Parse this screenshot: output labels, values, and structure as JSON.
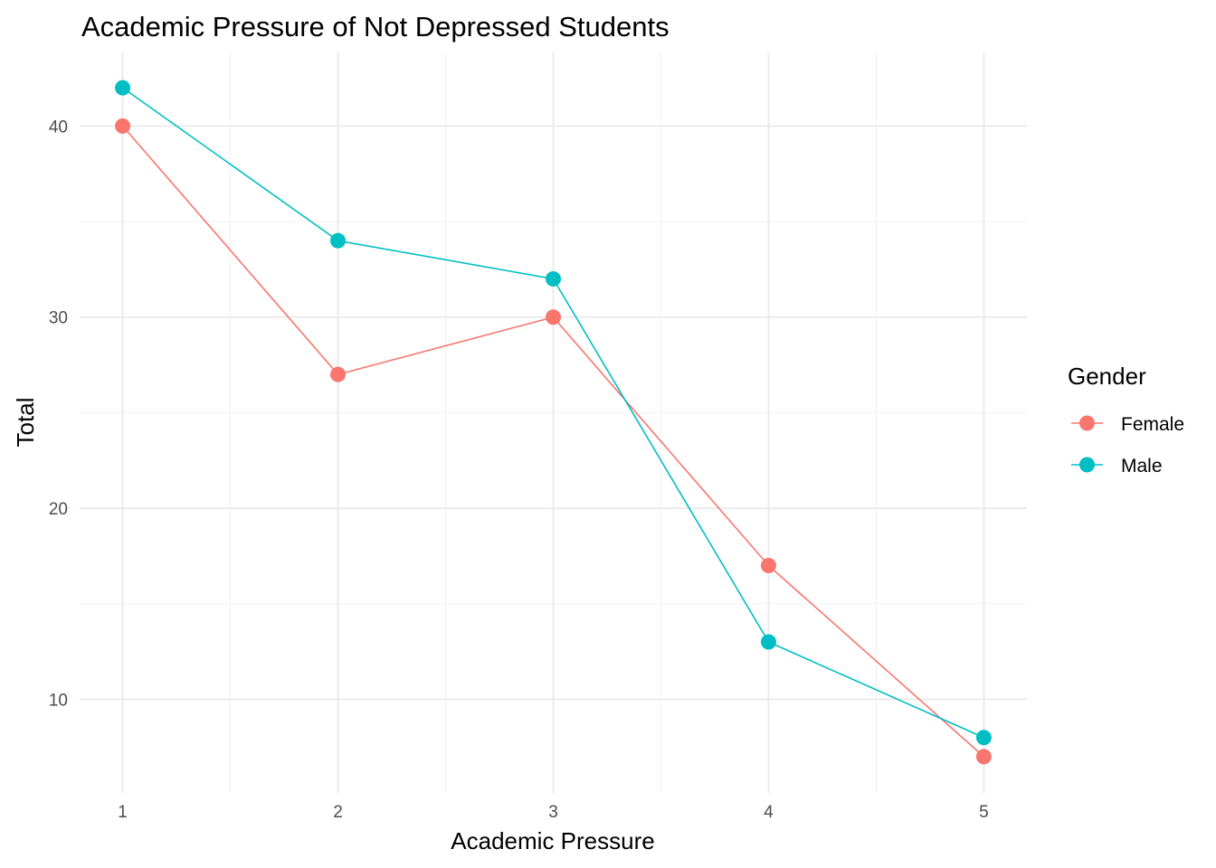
{
  "chart_data": {
    "type": "line",
    "title": "Academic Pressure of Not Depressed Students",
    "xlabel": "Academic Pressure",
    "ylabel": "Total",
    "x": [
      1,
      2,
      3,
      4,
      5
    ],
    "x_ticks": [
      "1",
      "2",
      "3",
      "4",
      "5"
    ],
    "y_ticks": [
      "10",
      "20",
      "30",
      "40"
    ],
    "xlim": [
      0.8,
      5.2
    ],
    "ylim": [
      5.1,
      43.85
    ],
    "grid": true,
    "legend": {
      "title": "Gender",
      "placement": "right"
    },
    "series": [
      {
        "name": "Female",
        "color": "#F8766D",
        "values": [
          40,
          27,
          30,
          17,
          7
        ]
      },
      {
        "name": "Male",
        "color": "#00BFC4",
        "values": [
          42,
          34,
          32,
          13,
          8
        ]
      }
    ]
  }
}
